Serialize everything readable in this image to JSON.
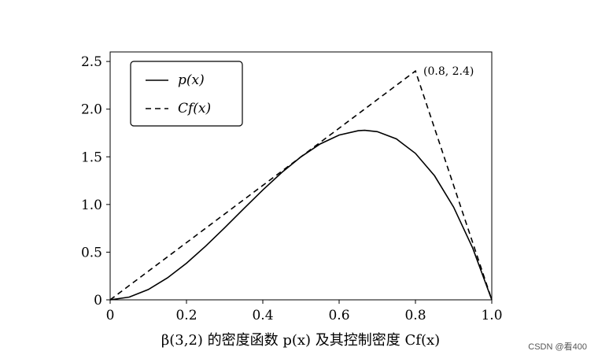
{
  "chart_data": {
    "type": "line",
    "xlabel": "β(3,2) 的密度函数 p(x) 及其控制密度 Cf(x)",
    "ylabel": "",
    "xlim": [
      0,
      1
    ],
    "ylim": [
      0,
      2.6
    ],
    "xticks": [
      "0",
      "0.2",
      "0.4",
      "0.6",
      "0.8",
      "1.0"
    ],
    "yticks": [
      "0",
      "0.5",
      "1.0",
      "1.5",
      "2.0",
      "2.5"
    ],
    "grid": false,
    "legend_position": "top-left",
    "series": [
      {
        "name": "p(x)",
        "style": "solid",
        "x": [
          0,
          0.05,
          0.1,
          0.15,
          0.2,
          0.25,
          0.3,
          0.35,
          0.4,
          0.45,
          0.5,
          0.55,
          0.6,
          0.65,
          0.667,
          0.7,
          0.75,
          0.8,
          0.85,
          0.9,
          0.95,
          1.0
        ],
        "y": [
          0,
          0.029,
          0.108,
          0.23,
          0.384,
          0.563,
          0.756,
          0.956,
          1.152,
          1.337,
          1.5,
          1.634,
          1.728,
          1.774,
          1.778,
          1.764,
          1.688,
          1.536,
          1.301,
          0.972,
          0.542,
          0
        ]
      },
      {
        "name": "Cf(x)",
        "style": "dashed",
        "x": [
          0,
          0.8,
          1.0
        ],
        "y": [
          0,
          2.4,
          0
        ]
      }
    ],
    "annotations": [
      {
        "text": "(0.8, 2.4)",
        "x": 0.8,
        "y": 2.4
      }
    ]
  },
  "watermark": "CSDN @看400"
}
